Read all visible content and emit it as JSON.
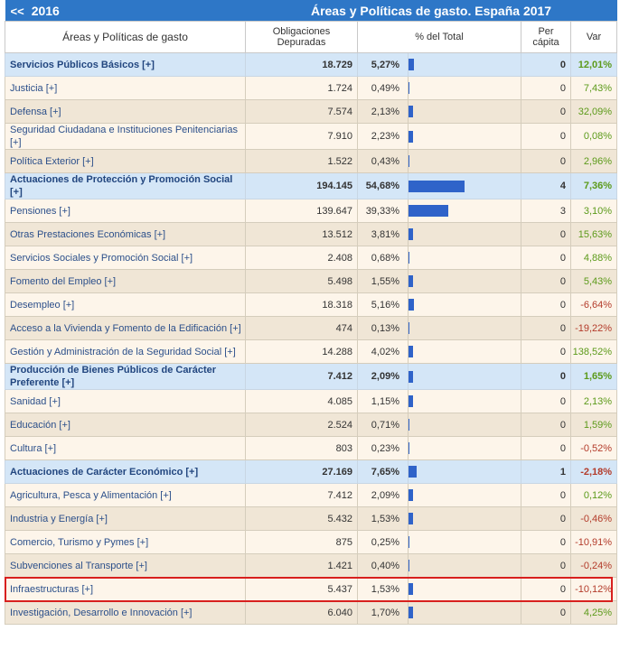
{
  "header": {
    "prev_arrow": "<<",
    "prev_year": "2016",
    "title": "Áreas y Políticas de gasto. España 2017"
  },
  "columns": {
    "name": "Áreas y Políticas de gasto",
    "obligaciones_line1": "Obligaciones",
    "obligaciones_line2": "Depuradas",
    "pct_total": "% del Total",
    "per_capita_line1": "Per",
    "per_capita_line2": "cápita",
    "var": "Var"
  },
  "rows": [
    {
      "type": "area",
      "name": "Servicios Públicos Básicos [+]",
      "value": "18.729",
      "pct": "5,27%",
      "pct_num": 5.27,
      "per_capita": "0",
      "var": "12,01%",
      "var_sign": "pos"
    },
    {
      "type": "policy",
      "name": "Justicia [+]",
      "value": "1.724",
      "pct": "0,49%",
      "pct_num": 0.49,
      "per_capita": "0",
      "var": "7,43%",
      "var_sign": "pos"
    },
    {
      "type": "policy",
      "name": "Defensa [+]",
      "value": "7.574",
      "pct": "2,13%",
      "pct_num": 2.13,
      "per_capita": "0",
      "var": "32,09%",
      "var_sign": "pos"
    },
    {
      "type": "policy",
      "name": "Seguridad Ciudadana e Instituciones Penitenciarias [+]",
      "value": "7.910",
      "pct": "2,23%",
      "pct_num": 2.23,
      "per_capita": "0",
      "var": "0,08%",
      "var_sign": "pos"
    },
    {
      "type": "policy",
      "name": "Política Exterior [+]",
      "value": "1.522",
      "pct": "0,43%",
      "pct_num": 0.43,
      "per_capita": "0",
      "var": "2,96%",
      "var_sign": "pos"
    },
    {
      "type": "area",
      "name": "Actuaciones de Protección y Promoción Social [+]",
      "value": "194.145",
      "pct": "54,68%",
      "pct_num": 54.68,
      "per_capita": "4",
      "var": "7,36%",
      "var_sign": "pos"
    },
    {
      "type": "policy",
      "name": "Pensiones [+]",
      "value": "139.647",
      "pct": "39,33%",
      "pct_num": 39.33,
      "per_capita": "3",
      "var": "3,10%",
      "var_sign": "pos"
    },
    {
      "type": "policy",
      "name": "Otras Prestaciones Económicas [+]",
      "value": "13.512",
      "pct": "3,81%",
      "pct_num": 3.81,
      "per_capita": "0",
      "var": "15,63%",
      "var_sign": "pos"
    },
    {
      "type": "policy",
      "name": "Servicios Sociales y Promoción Social [+]",
      "value": "2.408",
      "pct": "0,68%",
      "pct_num": 0.68,
      "per_capita": "0",
      "var": "4,88%",
      "var_sign": "pos"
    },
    {
      "type": "policy",
      "name": "Fomento del Empleo [+]",
      "value": "5.498",
      "pct": "1,55%",
      "pct_num": 1.55,
      "per_capita": "0",
      "var": "5,43%",
      "var_sign": "pos"
    },
    {
      "type": "policy",
      "name": "Desempleo [+]",
      "value": "18.318",
      "pct": "5,16%",
      "pct_num": 5.16,
      "per_capita": "0",
      "var": "-6,64%",
      "var_sign": "neg"
    },
    {
      "type": "policy",
      "name": "Acceso a la Vivienda y Fomento de la Edificación [+]",
      "value": "474",
      "pct": "0,13%",
      "pct_num": 0.13,
      "per_capita": "0",
      "var": "-19,22%",
      "var_sign": "neg"
    },
    {
      "type": "policy",
      "name": "Gestión y Administración de la Seguridad Social [+]",
      "value": "14.288",
      "pct": "4,02%",
      "pct_num": 4.02,
      "per_capita": "0",
      "var": "138,52%",
      "var_sign": "pos"
    },
    {
      "type": "area",
      "name": "Producción de Bienes Públicos de Carácter Preferente [+]",
      "value": "7.412",
      "pct": "2,09%",
      "pct_num": 2.09,
      "per_capita": "0",
      "var": "1,65%",
      "var_sign": "pos"
    },
    {
      "type": "policy",
      "name": "Sanidad [+]",
      "value": "4.085",
      "pct": "1,15%",
      "pct_num": 1.15,
      "per_capita": "0",
      "var": "2,13%",
      "var_sign": "pos"
    },
    {
      "type": "policy",
      "name": "Educación [+]",
      "value": "2.524",
      "pct": "0,71%",
      "pct_num": 0.71,
      "per_capita": "0",
      "var": "1,59%",
      "var_sign": "pos"
    },
    {
      "type": "policy",
      "name": "Cultura [+]",
      "value": "803",
      "pct": "0,23%",
      "pct_num": 0.23,
      "per_capita": "0",
      "var": "-0,52%",
      "var_sign": "neg"
    },
    {
      "type": "area",
      "name": "Actuaciones de Carácter Económico [+]",
      "value": "27.169",
      "pct": "7,65%",
      "pct_num": 7.65,
      "per_capita": "1",
      "var": "-2,18%",
      "var_sign": "neg"
    },
    {
      "type": "policy",
      "name": "Agricultura, Pesca y Alimentación [+]",
      "value": "7.412",
      "pct": "2,09%",
      "pct_num": 2.09,
      "per_capita": "0",
      "var": "0,12%",
      "var_sign": "pos"
    },
    {
      "type": "policy",
      "name": "Industria y Energía [+]",
      "value": "5.432",
      "pct": "1,53%",
      "pct_num": 1.53,
      "per_capita": "0",
      "var": "-0,46%",
      "var_sign": "neg"
    },
    {
      "type": "policy",
      "name": "Comercio, Turismo y Pymes [+]",
      "value": "875",
      "pct": "0,25%",
      "pct_num": 0.25,
      "per_capita": "0",
      "var": "-10,91%",
      "var_sign": "neg"
    },
    {
      "type": "policy",
      "name": "Subvenciones al Transporte [+]",
      "value": "1.421",
      "pct": "0,40%",
      "pct_num": 0.4,
      "per_capita": "0",
      "var": "-0,24%",
      "var_sign": "neg"
    },
    {
      "type": "policy",
      "name": "Infraestructuras [+]",
      "value": "5.437",
      "pct": "1,53%",
      "pct_num": 1.53,
      "per_capita": "0",
      "var": "-10,12%",
      "var_sign": "neg",
      "highlighted": true
    },
    {
      "type": "policy",
      "name": "Investigación, Desarrollo e Innovación [+]",
      "value": "6.040",
      "pct": "1,70%",
      "pct_num": 1.7,
      "per_capita": "0",
      "var": "4,25%",
      "var_sign": "pos"
    }
  ],
  "colors": {
    "header_bg": "#2e77c7",
    "area_row_bg": "#d4e6f7",
    "bar": "#2f63c9",
    "positive": "#5c9a1a",
    "negative": "#b33b2a",
    "highlight": "#d8201e"
  }
}
